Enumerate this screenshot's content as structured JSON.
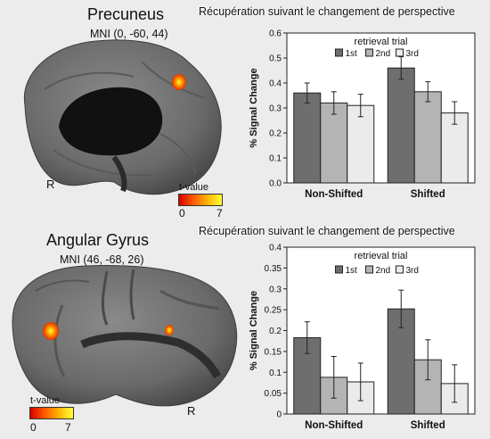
{
  "panels": [
    {
      "figure_title": "Récupération suivant le changement de perspective",
      "brain": {
        "region": "Precuneus",
        "mni": "MNI (0, -60, 44)",
        "hemisphere": "R",
        "tvalue_label": "t-value",
        "tvalue_min": "0",
        "tvalue_max": "7"
      },
      "chart_data": {
        "type": "bar",
        "categories": [
          "Non-Shifted",
          "Shifted"
        ],
        "series": [
          {
            "name": "1st",
            "values": [
              0.36,
              0.46
            ],
            "errors": [
              0.04,
              0.045
            ],
            "color": "#6e6e6e"
          },
          {
            "name": "2nd",
            "values": [
              0.32,
              0.365
            ],
            "errors": [
              0.045,
              0.04
            ],
            "color": "#b4b4b4"
          },
          {
            "name": "3rd",
            "values": [
              0.31,
              0.28
            ],
            "errors": [
              0.045,
              0.045
            ],
            "color": "#ebebeb"
          }
        ],
        "ylabel": "% Signal Change",
        "ylim": [
          0,
          0.6
        ],
        "yticks": [
          "0.0",
          "0.1",
          "0.2",
          "0.3",
          "0.4",
          "0.5",
          "0.6"
        ],
        "legend_title": "retrieval trial",
        "legend_position": "top",
        "grid": false
      }
    },
    {
      "figure_title": "Récupération suivant le changement de perspective",
      "brain": {
        "region": "Angular Gyrus",
        "mni": "MNI (46, -68, 26)",
        "hemisphere": "R",
        "tvalue_label": "t-value",
        "tvalue_min": "0",
        "tvalue_max": "7"
      },
      "chart_data": {
        "type": "bar",
        "categories": [
          "Non-Shifted",
          "Shifted"
        ],
        "series": [
          {
            "name": "1st",
            "values": [
              0.183,
              0.252
            ],
            "errors": [
              0.038,
              0.045
            ],
            "color": "#6e6e6e"
          },
          {
            "name": "2nd",
            "values": [
              0.088,
              0.13
            ],
            "errors": [
              0.05,
              0.048
            ],
            "color": "#b4b4b4"
          },
          {
            "name": "3rd",
            "values": [
              0.077,
              0.073
            ],
            "errors": [
              0.045,
              0.045
            ],
            "color": "#ebebeb"
          }
        ],
        "ylabel": "% Signal Change",
        "ylim": [
          0,
          0.4
        ],
        "yticks": [
          "0",
          "0.05",
          "0.1",
          "0.15",
          "0.2",
          "0.25",
          "0.3",
          "0.35",
          "0.4"
        ],
        "legend_title": "retrieval trial",
        "legend_position": "top",
        "grid": false
      }
    }
  ]
}
